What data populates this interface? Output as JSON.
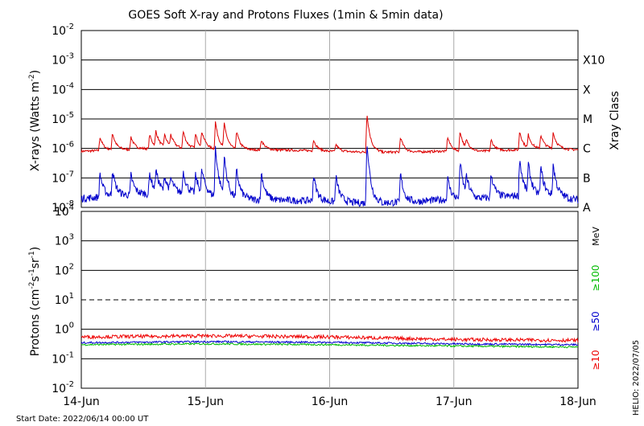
{
  "title": "GOES Soft X-ray and Protons Fluxes   (1min & 5min data)",
  "start_date": "Start Date: 2022/06/14 00:00 UT",
  "footer_credit": "HELIO: 2022/07/05",
  "colors": {
    "xray_long": "#dd0000",
    "xray_short": "#0000cc",
    "proton_ge10": "#ee0000",
    "proton_ge50": "#0000cc",
    "proton_ge100": "#00bb00",
    "grid": "#aaaaaa"
  },
  "chart_data": [
    {
      "type": "line",
      "panel": "xray",
      "ylabel_main": "X-rays (Watts m",
      "ylabel_sup": "-2",
      "ylabel_end": ")",
      "yscale": "log",
      "ylim": [
        1e-08,
        0.01
      ],
      "y_ticks": [
        {
          "base": "10",
          "exp": "-2",
          "value": 0.01
        },
        {
          "base": "10",
          "exp": "-3",
          "value": 0.001
        },
        {
          "base": "10",
          "exp": "-4",
          "value": 0.0001
        },
        {
          "base": "10",
          "exp": "-5",
          "value": 1e-05
        },
        {
          "base": "10",
          "exp": "-6",
          "value": 1e-06
        },
        {
          "base": "10",
          "exp": "-7",
          "value": 1e-07
        },
        {
          "base": "10",
          "exp": "-8",
          "value": 1e-08
        }
      ],
      "right_axis_title": "Xray Class",
      "class_labels": [
        {
          "label": "X10",
          "value": 0.001
        },
        {
          "label": "X",
          "value": 0.0001
        },
        {
          "label": "M",
          "value": 1e-05
        },
        {
          "label": "C",
          "value": 1e-06
        },
        {
          "label": "B",
          "value": 1e-07
        },
        {
          "label": "A",
          "value": 1e-08
        }
      ],
      "x_range_days": [
        "14-Jun",
        "18-Jun"
      ],
      "series": [
        {
          "key": "long",
          "base": [
            [
              0.0,
              8e-07
            ],
            [
              0.3,
              9e-07
            ],
            [
              0.6,
              1e-06
            ],
            [
              0.9,
              1e-06
            ],
            [
              1.2,
              9e-07
            ],
            [
              1.5,
              9e-07
            ],
            [
              1.8,
              8.5e-07
            ],
            [
              2.0,
              8e-07
            ],
            [
              2.3,
              7.5e-07
            ],
            [
              2.6,
              7.5e-07
            ],
            [
              2.9,
              8e-07
            ],
            [
              3.2,
              8e-07
            ],
            [
              3.5,
              9e-07
            ],
            [
              3.8,
              1e-06
            ],
            [
              4.0,
              9e-07
            ]
          ],
          "peaks": [
            [
              0.15,
              2.5e-06
            ],
            [
              0.25,
              3.5e-06
            ],
            [
              0.4,
              2.5e-06
            ],
            [
              0.55,
              3e-06
            ],
            [
              0.6,
              4e-06
            ],
            [
              0.67,
              3e-06
            ],
            [
              0.72,
              3e-06
            ],
            [
              0.82,
              4e-06
            ],
            [
              0.92,
              3e-06
            ],
            [
              0.97,
              4e-06
            ],
            [
              1.08,
              8e-06
            ],
            [
              1.15,
              7.5e-06
            ],
            [
              1.25,
              4e-06
            ],
            [
              1.45,
              2e-06
            ],
            [
              1.87,
              2e-06
            ],
            [
              2.05,
              1.4e-06
            ],
            [
              2.3,
              1.6e-05
            ],
            [
              2.57,
              2.5e-06
            ],
            [
              2.95,
              2.5e-06
            ],
            [
              3.05,
              4e-06
            ],
            [
              3.1,
              2e-06
            ],
            [
              3.3,
              2e-06
            ],
            [
              3.53,
              4e-06
            ],
            [
              3.6,
              3e-06
            ],
            [
              3.7,
              3e-06
            ],
            [
              3.8,
              3.5e-06
            ]
          ]
        },
        {
          "key": "short",
          "base": [
            [
              0.0,
              2e-08
            ],
            [
              0.3,
              2.5e-08
            ],
            [
              0.6,
              3e-08
            ],
            [
              0.9,
              3e-08
            ],
            [
              1.2,
              2e-08
            ],
            [
              1.5,
              1.8e-08
            ],
            [
              1.8,
              1.7e-08
            ],
            [
              2.0,
              1.6e-08
            ],
            [
              2.3,
              1.4e-08
            ],
            [
              2.6,
              1.5e-08
            ],
            [
              2.9,
              1.8e-08
            ],
            [
              3.2,
              2e-08
            ],
            [
              3.5,
              2.5e-08
            ],
            [
              3.8,
              2.5e-08
            ],
            [
              4.0,
              1.8e-08
            ]
          ],
          "peaks": [
            [
              0.15,
              1.5e-07
            ],
            [
              0.25,
              2e-07
            ],
            [
              0.4,
              1.3e-07
            ],
            [
              0.55,
              1.5e-07
            ],
            [
              0.6,
              2e-07
            ],
            [
              0.67,
              1.2e-07
            ],
            [
              0.72,
              1e-07
            ],
            [
              0.82,
              1.8e-07
            ],
            [
              0.92,
              1.2e-07
            ],
            [
              0.97,
              2e-07
            ],
            [
              1.08,
              1.2e-06
            ],
            [
              1.15,
              6e-07
            ],
            [
              1.25,
              2e-07
            ],
            [
              1.45,
              1.6e-07
            ],
            [
              1.87,
              1.3e-07
            ],
            [
              2.05,
              1.2e-07
            ],
            [
              2.3,
              2.2e-06
            ],
            [
              2.57,
              1.5e-07
            ],
            [
              2.95,
              1e-07
            ],
            [
              3.05,
              4e-07
            ],
            [
              3.1,
              1.2e-07
            ],
            [
              3.3,
              1.5e-07
            ],
            [
              3.53,
              5e-07
            ],
            [
              3.6,
              3e-07
            ],
            [
              3.7,
              2.5e-07
            ],
            [
              3.8,
              3e-07
            ]
          ]
        }
      ]
    },
    {
      "type": "line",
      "panel": "protons",
      "ylabel_main": "Protons (cm",
      "ylabel_sup1": "-2",
      "ylabel_mid1": "s",
      "ylabel_sup2": "-1",
      "ylabel_mid2": "sr",
      "ylabel_sup3": "-1",
      "ylabel_end": ")",
      "yscale": "log",
      "ylim": [
        0.01,
        10000.0
      ],
      "y_ticks": [
        {
          "base": "10",
          "exp": "4",
          "value": 10000.0
        },
        {
          "base": "10",
          "exp": "3",
          "value": 1000.0
        },
        {
          "base": "10",
          "exp": "2",
          "value": 100.0
        },
        {
          "base": "10",
          "exp": "1",
          "value": 10.0
        },
        {
          "base": "10",
          "exp": "0",
          "value": 1.0
        },
        {
          "base": "10",
          "exp": "-1",
          "value": 0.1
        },
        {
          "base": "10",
          "exp": "-2",
          "value": 0.01
        }
      ],
      "threshold": 10,
      "unit_label": "MeV",
      "channel_labels": [
        "≥100",
        "≥50",
        "≥10"
      ],
      "series": [
        {
          "key": "ge10",
          "name": "≥10",
          "base": [
            [
              0.0,
              0.55
            ],
            [
              1.0,
              0.6
            ],
            [
              2.0,
              0.55
            ],
            [
              3.0,
              0.45
            ],
            [
              4.0,
              0.42
            ]
          ]
        },
        {
          "key": "ge50",
          "name": "≥50",
          "base": [
            [
              0.0,
              0.35
            ],
            [
              1.0,
              0.38
            ],
            [
              2.0,
              0.36
            ],
            [
              3.0,
              0.32
            ],
            [
              4.0,
              0.3
            ]
          ]
        },
        {
          "key": "ge100",
          "name": "≥100",
          "base": [
            [
              0.0,
              0.3
            ],
            [
              1.0,
              0.32
            ],
            [
              2.0,
              0.3
            ],
            [
              3.0,
              0.27
            ],
            [
              4.0,
              0.25
            ]
          ]
        }
      ]
    }
  ],
  "x_ticks": [
    "14-Jun",
    "15-Jun",
    "16-Jun",
    "17-Jun",
    "18-Jun"
  ]
}
